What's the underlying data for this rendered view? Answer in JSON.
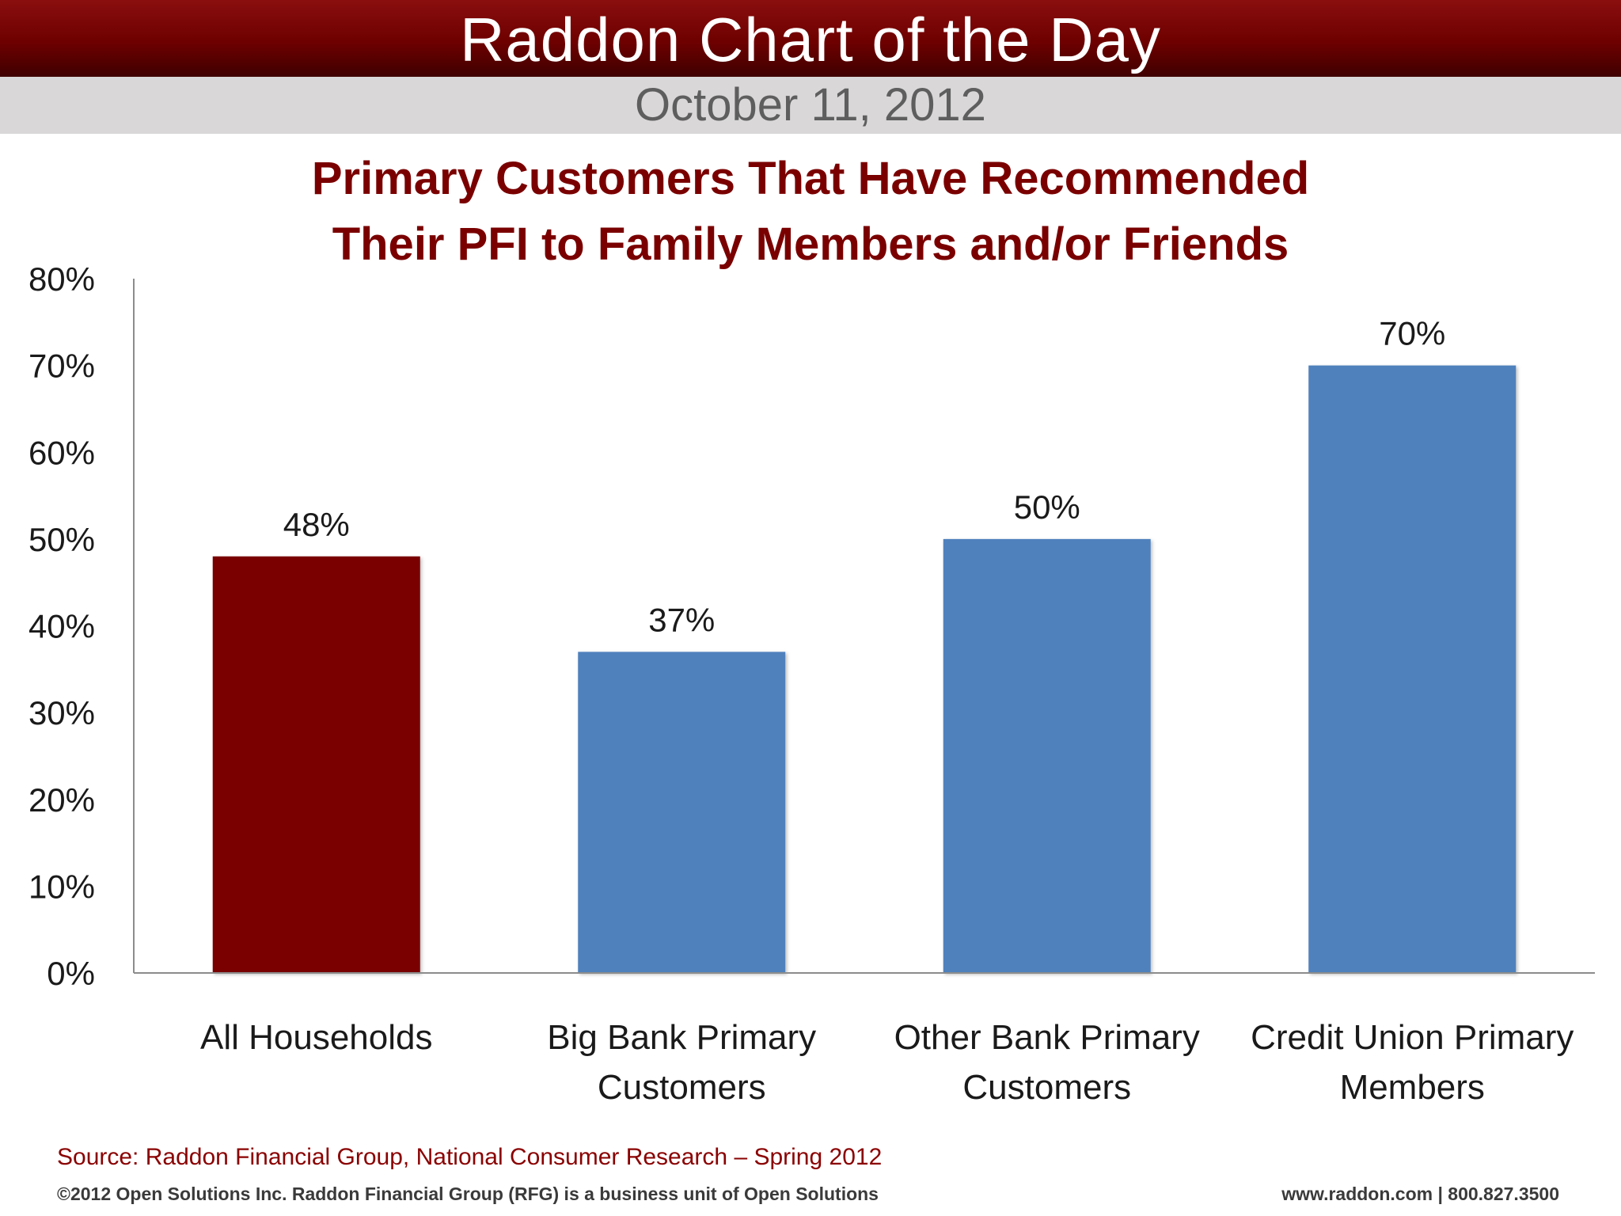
{
  "header": {
    "title": "Raddon Chart of the Day",
    "date": "October 11, 2012"
  },
  "chart_data": {
    "type": "bar",
    "title_lines": [
      "Primary Customers That Have Recommended",
      "Their PFI to Family Members and/or Friends"
    ],
    "categories": [
      [
        "All Households"
      ],
      [
        "Big Bank Primary",
        "Customers"
      ],
      [
        "Other Bank Primary",
        "Customers"
      ],
      [
        "Credit Union Primary",
        "Members"
      ]
    ],
    "values": [
      48,
      37,
      50,
      70
    ],
    "value_labels": [
      "48%",
      "37%",
      "50%",
      "70%"
    ],
    "bar_colors": [
      "#7a0000",
      "#4f81bd",
      "#4f81bd",
      "#4f81bd"
    ],
    "ylim": [
      0,
      80
    ],
    "yticks": [
      0,
      10,
      20,
      30,
      40,
      50,
      60,
      70,
      80
    ],
    "ytick_labels": [
      "0%",
      "10%",
      "20%",
      "30%",
      "40%",
      "50%",
      "60%",
      "70%",
      "80%"
    ],
    "xlabel": "",
    "ylabel": "",
    "grid": false,
    "legend": "none"
  },
  "footer": {
    "source": "Source: Raddon Financial Group, National Consumer Research – Spring 2012",
    "copyright": "©2012 Open Solutions Inc.  Raddon Financial Group (RFG) is a business unit of Open Solutions",
    "contact": "www.raddon.com  |  800.827.3500"
  },
  "colors": {
    "brand_red": "#7a0000",
    "bar_blue": "#4f81bd"
  }
}
